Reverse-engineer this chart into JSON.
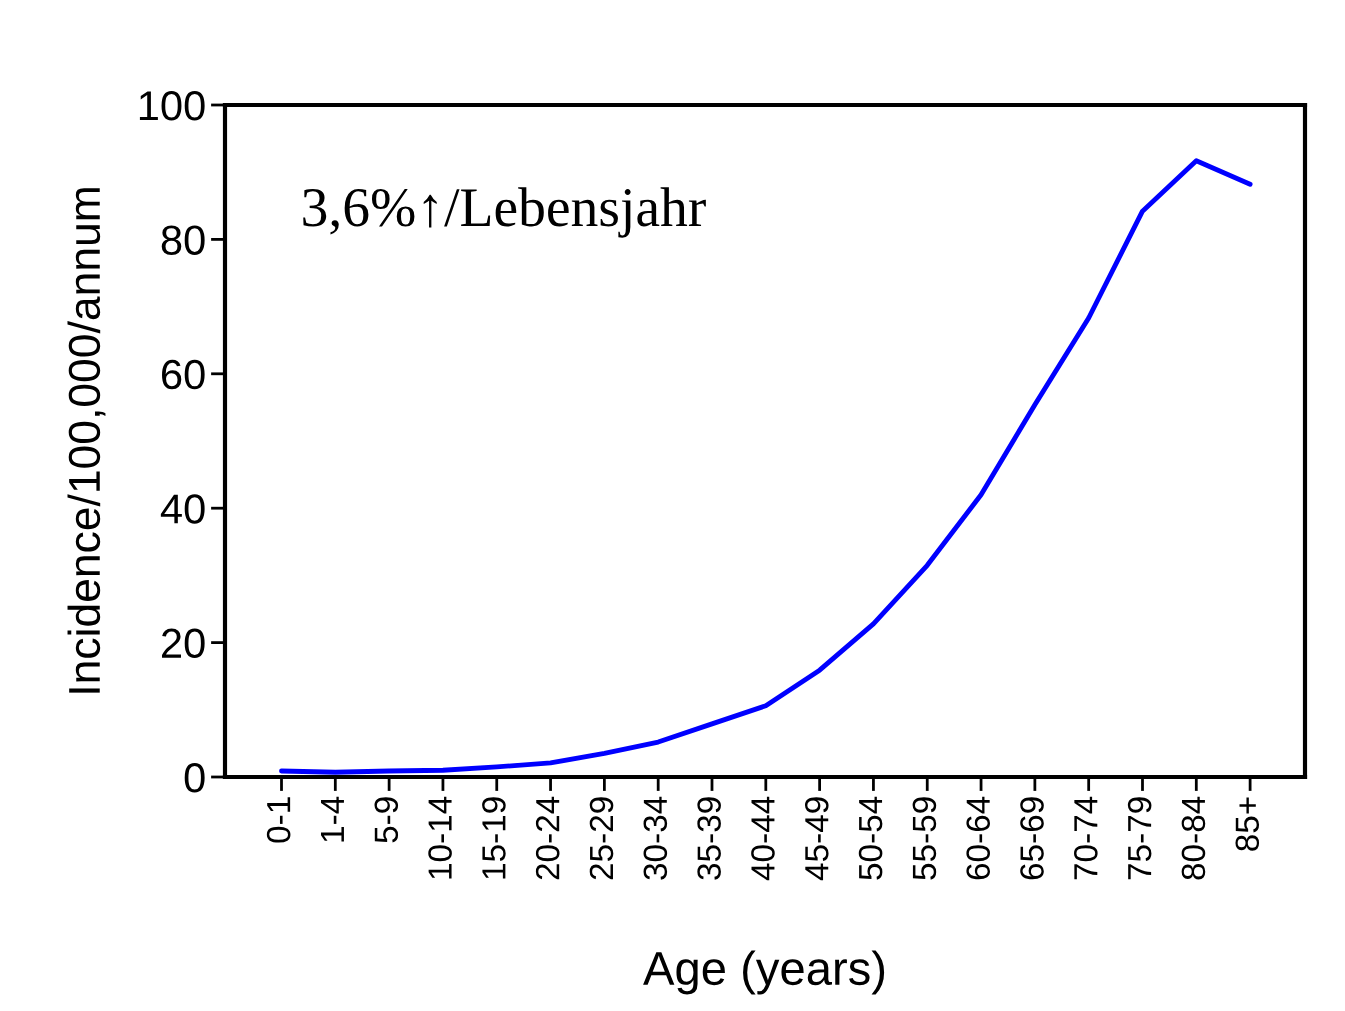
{
  "chart_data": {
    "type": "line",
    "categories": [
      "0-1",
      "1-4",
      "5-9",
      "10-14",
      "15-19",
      "20-24",
      "25-29",
      "30-34",
      "35-39",
      "40-44",
      "45-49",
      "50-54",
      "55-59",
      "60-64",
      "65-69",
      "70-74",
      "75-79",
      "80-84",
      "85+"
    ],
    "series": [
      {
        "color": "#0000ff",
        "values": [
          0.9,
          0.7,
          0.9,
          1.0,
          1.5,
          2.1,
          3.5,
          5.2,
          7.9,
          10.6,
          15.9,
          22.8,
          31.5,
          42,
          55.4,
          68.3,
          84.2,
          91.7,
          88.2
        ]
      }
    ],
    "xlabel": "Age (years)",
    "ylabel": "Incidence/100,000/annum",
    "ylim": [
      0,
      100
    ],
    "yticks": [
      0,
      20,
      40,
      60,
      80,
      100
    ],
    "annotations": [
      "3,6%↑/Lebensjahr"
    ],
    "grid": false,
    "legend": false,
    "marker": "none",
    "line_style": "solid"
  }
}
